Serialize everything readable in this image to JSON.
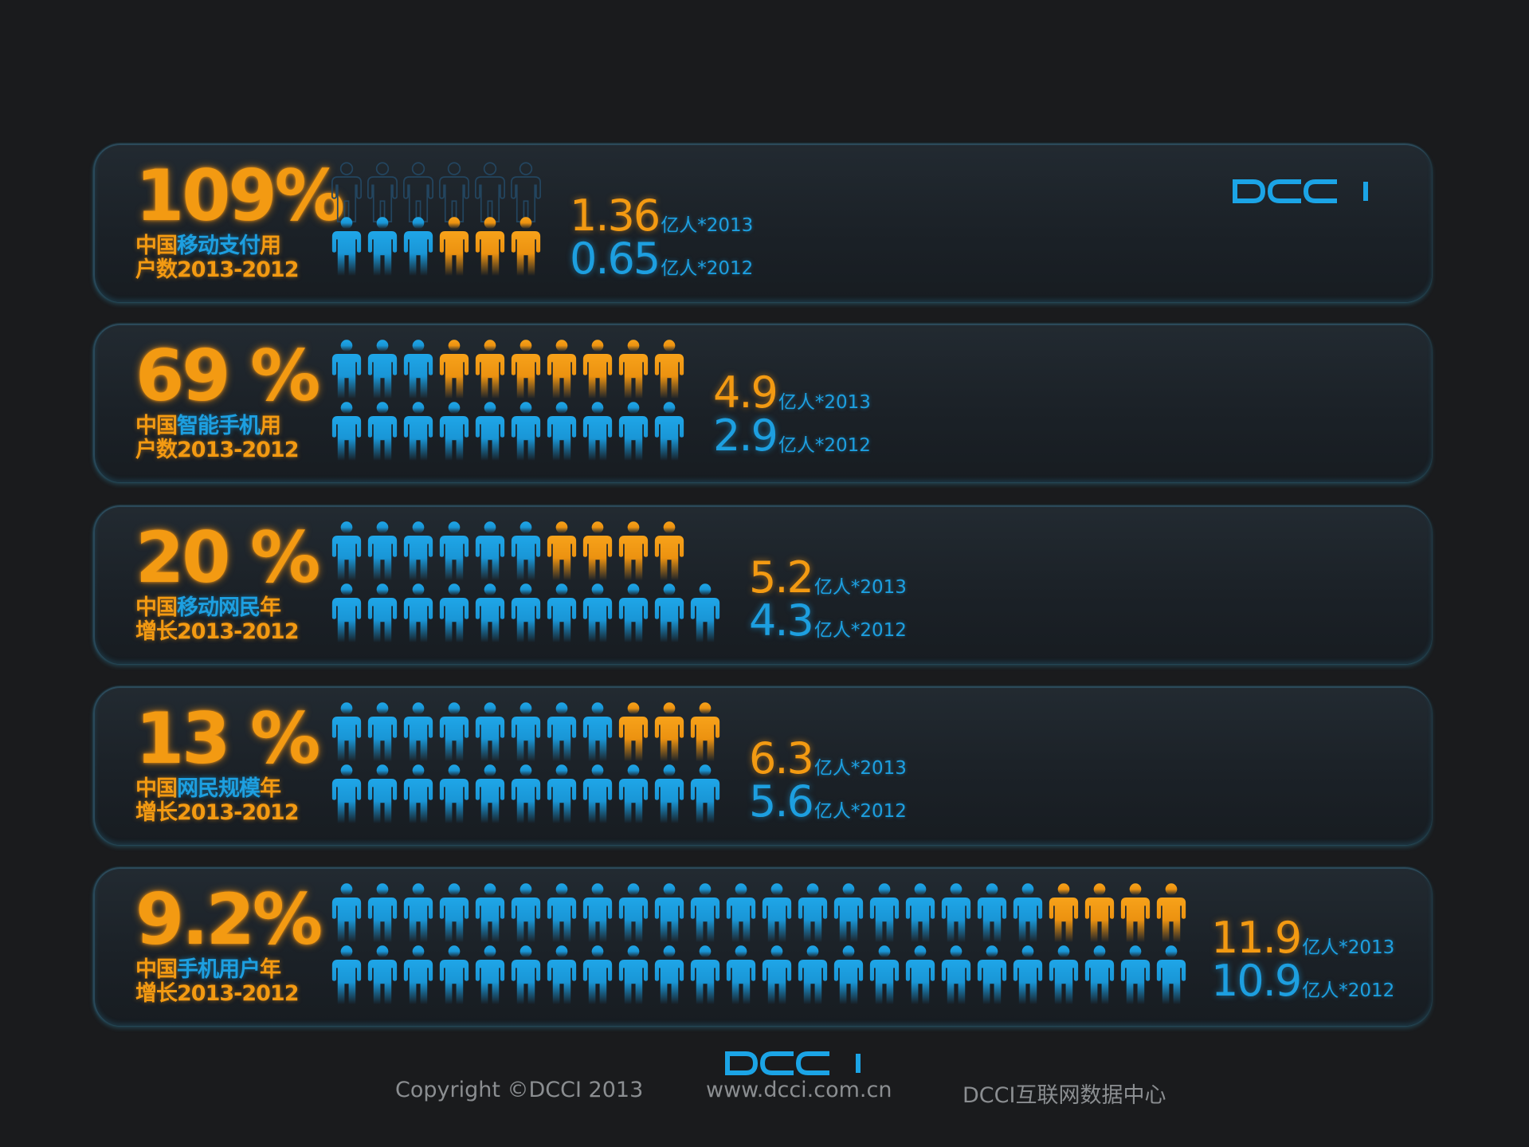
{
  "colors": {
    "orange": "#f39a12",
    "blue": "#1d9fe0",
    "ghost": "#23455f",
    "background": "#1a1b1d"
  },
  "logo_text": "DCCI",
  "footer": {
    "copyright": "Copyright ©DCCI 2013",
    "website": "www.dcci.com.cn",
    "org": "DCCI互联网数据中心"
  },
  "chart_data": {
    "type": "pictogram",
    "unit_per_icon_note": "each row of people icons compares 2013 (top row) with 2012 (bottom row)",
    "rows": [
      {
        "percent": "109%",
        "label_parts": [
          {
            "t": "中国",
            "c": "o"
          },
          {
            "t": "移动支付",
            "c": "b"
          },
          {
            "t": "用",
            "c": "o"
          },
          {
            "t": "\n"
          },
          {
            "t": "户数2013-2012",
            "c": "o"
          }
        ],
        "icons_2013": {
          "blue": 3,
          "orange": 3,
          "ghost_on_top": 6
        },
        "icons_2012": {
          "blue": 0,
          "orange": 0
        },
        "value_2013": "1.36",
        "value_2012": "0.65",
        "suffix_2013": "亿人*2013",
        "suffix_2012": "亿人*2012"
      },
      {
        "percent": "69 %",
        "label_parts": [
          {
            "t": "中国",
            "c": "o"
          },
          {
            "t": "智能手机",
            "c": "b"
          },
          {
            "t": "用",
            "c": "o"
          },
          {
            "t": "\n"
          },
          {
            "t": "户数2013-2012",
            "c": "o"
          }
        ],
        "icons_2013": {
          "blue": 3,
          "orange": 7
        },
        "icons_2012": {
          "blue": 10,
          "orange": 0
        },
        "value_2013": "4.9",
        "value_2012": "2.9",
        "suffix_2013": "亿人*2013",
        "suffix_2012": "亿人*2012"
      },
      {
        "percent": "20 %",
        "label_parts": [
          {
            "t": "中国",
            "c": "o"
          },
          {
            "t": "移动网民",
            "c": "b"
          },
          {
            "t": "年",
            "c": "o"
          },
          {
            "t": "\n"
          },
          {
            "t": "增长2013-2012",
            "c": "o"
          }
        ],
        "icons_2013": {
          "blue": 6,
          "orange": 4
        },
        "icons_2012": {
          "blue": 11,
          "orange": 0
        },
        "value_2013": "5.2",
        "value_2012": "4.3",
        "suffix_2013": "亿人*2013",
        "suffix_2012": "亿人*2012"
      },
      {
        "percent": "13 %",
        "label_parts": [
          {
            "t": "中国",
            "c": "o"
          },
          {
            "t": "网民规模",
            "c": "b"
          },
          {
            "t": "年",
            "c": "o"
          },
          {
            "t": "\n"
          },
          {
            "t": "增长2013-2012",
            "c": "o"
          }
        ],
        "icons_2013": {
          "blue": 8,
          "orange": 3
        },
        "icons_2012": {
          "blue": 11,
          "orange": 0
        },
        "value_2013": "6.3",
        "value_2012": "5.6",
        "suffix_2013": "亿人*2013",
        "suffix_2012": "亿人*2012"
      },
      {
        "percent": "9.2%",
        "label_parts": [
          {
            "t": "中国",
            "c": "o"
          },
          {
            "t": "手机用户",
            "c": "b"
          },
          {
            "t": "年",
            "c": "o"
          },
          {
            "t": "\n"
          },
          {
            "t": "增长2013-2012",
            "c": "o"
          }
        ],
        "icons_2013": {
          "blue": 20,
          "orange": 4
        },
        "icons_2012": {
          "blue": 24,
          "orange": 0
        },
        "value_2013": "11.9",
        "value_2012": "10.9",
        "suffix_2013": "亿人*2013",
        "suffix_2012": "亿人*2012"
      }
    ]
  }
}
